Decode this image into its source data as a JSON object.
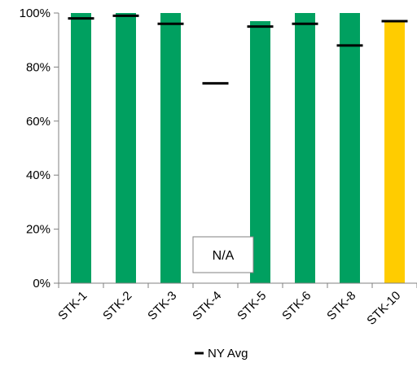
{
  "chart_data": {
    "type": "bar",
    "categories": [
      "STK-1",
      "STK-2",
      "STK-3",
      "STK-4",
      "STK-5",
      "STK-6",
      "STK-8",
      "STK-10"
    ],
    "values": [
      100,
      100,
      100,
      null,
      97,
      100,
      100,
      97
    ],
    "bar_colors": [
      "#00A060",
      "#00A060",
      "#00A060",
      "#00A060",
      "#00A060",
      "#00A060",
      "#00A060",
      "#FFCC00"
    ],
    "ny_avg": {
      "name": "NY Avg",
      "values": [
        98,
        99,
        96,
        74,
        95,
        96,
        88,
        97
      ],
      "color": "#000000"
    },
    "na_label": "N/A",
    "y_ticks": [
      "0%",
      "20%",
      "40%",
      "60%",
      "80%",
      "100%"
    ],
    "ylim": [
      0,
      100
    ],
    "grid": false,
    "legend_position": "bottom",
    "xlabel": "",
    "ylabel": ""
  }
}
